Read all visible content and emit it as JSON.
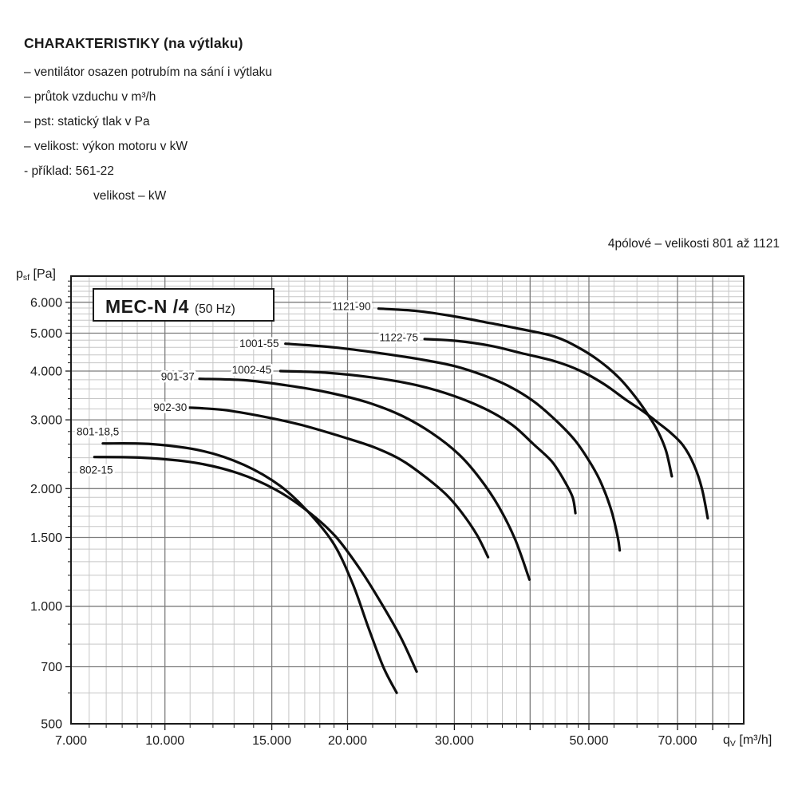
{
  "header": {
    "title": "CHARAKTERISTIKY (na výtlaku)",
    "lines": [
      "– ventilátor osazen potrubím na sání i výtlaku",
      "– průtok vzduchu v m³/h",
      "– pst: statický tlak v Pa",
      "– velikost: výkon motoru v kW",
      "- příklad: 561-22"
    ],
    "example_sub": "velikost – kW"
  },
  "annotation": "4pólové – velikosti 801 až 1121",
  "chart_data": {
    "type": "line",
    "title_box": {
      "main": "MEC-N /4",
      "sub": "(50 Hz)"
    },
    "colors": {
      "curve": "#0e0e0e",
      "grid_minor": "#c6c6c6",
      "grid_major": "#7d7d7d",
      "frame": "#1b1b1b",
      "text": "#1a1a1a",
      "box_fill": "#ffffff"
    },
    "x_axis": {
      "label_main": "q",
      "label_sub": "V",
      "label_rest": " [m³/h]",
      "scale": "log",
      "min": 7000,
      "max": 90000,
      "ticks": [
        7000,
        10000,
        15000,
        20000,
        30000,
        50000,
        70000
      ],
      "tick_labels": [
        "7.000",
        "10.000",
        "15.000",
        "20.000",
        "30.000",
        "50.000",
        "70.000"
      ],
      "major_grid": [
        10000,
        15000,
        20000,
        30000,
        40000,
        50000,
        70000,
        80000
      ],
      "minor_grid": [
        7500,
        8000,
        8500,
        9000,
        9500,
        11000,
        12000,
        13000,
        14000,
        16000,
        17000,
        18000,
        19000,
        22000,
        24000,
        26000,
        28000,
        32000,
        34000,
        36000,
        38000,
        42000,
        44000,
        46000,
        48000,
        55000,
        60000,
        65000,
        75000,
        85000
      ]
    },
    "y_axis": {
      "label_main": "p",
      "label_sub": "sf",
      "label_rest": " [Pa]",
      "scale": "log",
      "min": 500,
      "max": 7000,
      "ticks": [
        500,
        700,
        1000,
        1500,
        2000,
        3000,
        4000,
        5000,
        6000
      ],
      "tick_labels": [
        "500",
        "700",
        "1.000",
        "1.500",
        "2.000",
        "3.000",
        "4.000",
        "5.000",
        "6.000"
      ],
      "major_grid": [
        700,
        1000,
        1500,
        2000,
        3000,
        4000,
        5000,
        6000
      ],
      "minor_grid": [
        600,
        800,
        900,
        1100,
        1200,
        1300,
        1400,
        1600,
        1700,
        1800,
        1900,
        2200,
        2400,
        2600,
        2800,
        3200,
        3400,
        3600,
        3800,
        4200,
        4400,
        4600,
        4800,
        5200,
        5400,
        5600,
        5800,
        6200,
        6400,
        6600,
        6800
      ]
    },
    "series": [
      {
        "label": "802-15",
        "label_at": [
          7700,
          2230
        ],
        "points": [
          [
            7650,
            2410
          ],
          [
            9200,
            2400
          ],
          [
            11200,
            2330
          ],
          [
            13200,
            2190
          ],
          [
            15200,
            1990
          ],
          [
            17200,
            1750
          ],
          [
            19100,
            1510
          ],
          [
            21000,
            1240
          ],
          [
            22800,
            1010
          ],
          [
            24500,
            830
          ],
          [
            26000,
            680
          ]
        ]
      },
      {
        "label": "801-18,5",
        "label_at": [
          7750,
          2800
        ],
        "points": [
          [
            7900,
            2610
          ],
          [
            9500,
            2600
          ],
          [
            11500,
            2500
          ],
          [
            13500,
            2300
          ],
          [
            15500,
            2030
          ],
          [
            17300,
            1730
          ],
          [
            19000,
            1440
          ],
          [
            20400,
            1140
          ],
          [
            21600,
            890
          ],
          [
            22900,
            700
          ],
          [
            24100,
            600
          ]
        ]
      },
      {
        "label": "902-30",
        "label_at": [
          10200,
          3230
        ],
        "points": [
          [
            10900,
            3225
          ],
          [
            12500,
            3180
          ],
          [
            14500,
            3060
          ],
          [
            16800,
            2910
          ],
          [
            19500,
            2720
          ],
          [
            22000,
            2560
          ],
          [
            24500,
            2370
          ],
          [
            27000,
            2130
          ],
          [
            29200,
            1920
          ],
          [
            31000,
            1720
          ],
          [
            32700,
            1520
          ],
          [
            34100,
            1335
          ]
        ]
      },
      {
        "label": "901-37",
        "label_at": [
          10500,
          3870
        ],
        "points": [
          [
            11400,
            3820
          ],
          [
            13500,
            3790
          ],
          [
            15800,
            3680
          ],
          [
            18500,
            3530
          ],
          [
            21500,
            3330
          ],
          [
            24500,
            3080
          ],
          [
            27500,
            2780
          ],
          [
            30500,
            2450
          ],
          [
            33000,
            2130
          ],
          [
            35500,
            1800
          ],
          [
            37800,
            1480
          ],
          [
            39900,
            1170
          ]
        ]
      },
      {
        "label": "1002-45",
        "label_at": [
          13900,
          4030
        ],
        "points": [
          [
            15500,
            4000
          ],
          [
            18500,
            3960
          ],
          [
            22000,
            3850
          ],
          [
            26000,
            3680
          ],
          [
            30000,
            3450
          ],
          [
            34000,
            3180
          ],
          [
            37500,
            2900
          ],
          [
            40500,
            2600
          ],
          [
            43400,
            2350
          ],
          [
            45500,
            2100
          ],
          [
            47000,
            1900
          ],
          [
            47500,
            1730
          ]
        ]
      },
      {
        "label": "1001-55",
        "label_at": [
          14300,
          4700
        ],
        "points": [
          [
            15800,
            4700
          ],
          [
            19000,
            4600
          ],
          [
            22500,
            4450
          ],
          [
            26500,
            4280
          ],
          [
            30000,
            4120
          ],
          [
            33500,
            3900
          ],
          [
            37000,
            3650
          ],
          [
            40500,
            3350
          ],
          [
            44000,
            3000
          ],
          [
            47500,
            2650
          ],
          [
            50500,
            2300
          ],
          [
            52500,
            2050
          ],
          [
            54500,
            1750
          ],
          [
            55800,
            1500
          ],
          [
            56200,
            1390
          ]
        ]
      },
      {
        "label": "1122-75",
        "label_at": [
          24300,
          4870
        ],
        "points": [
          [
            26800,
            4830
          ],
          [
            30200,
            4780
          ],
          [
            34500,
            4640
          ],
          [
            38700,
            4445
          ],
          [
            43900,
            4240
          ],
          [
            48500,
            4000
          ],
          [
            53000,
            3700
          ],
          [
            57500,
            3380
          ],
          [
            61500,
            3150
          ],
          [
            65000,
            2950
          ],
          [
            68000,
            2790
          ],
          [
            71500,
            2580
          ],
          [
            74500,
            2300
          ],
          [
            76800,
            2000
          ],
          [
            78500,
            1680
          ]
        ]
      },
      {
        "label": "1121-90",
        "label_at": [
          20300,
          5850
        ],
        "points": [
          [
            22500,
            5780
          ],
          [
            26000,
            5700
          ],
          [
            30000,
            5520
          ],
          [
            34500,
            5300
          ],
          [
            38700,
            5120
          ],
          [
            43900,
            4900
          ],
          [
            48000,
            4600
          ],
          [
            52000,
            4250
          ],
          [
            56000,
            3850
          ],
          [
            59500,
            3450
          ],
          [
            62500,
            3100
          ],
          [
            65000,
            2800
          ],
          [
            67000,
            2500
          ],
          [
            68500,
            2150
          ]
        ]
      }
    ]
  }
}
